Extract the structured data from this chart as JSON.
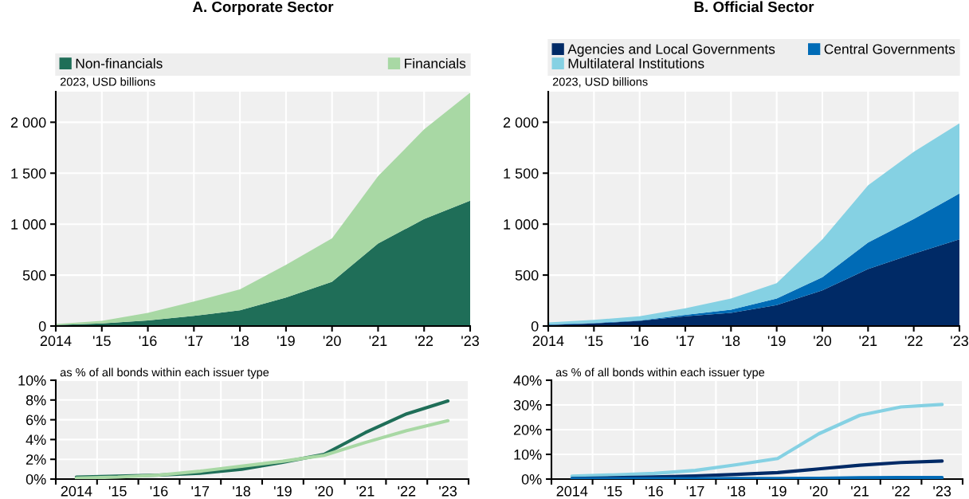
{
  "chart_data": [
    {
      "type": "area",
      "stacked": true,
      "title": "A. Corporate Sector",
      "ylabel": "2023, USD billions",
      "legend": "top",
      "grid": true,
      "x": [
        2014,
        2015,
        2016,
        2017,
        2018,
        2019,
        2020,
        2021,
        2022,
        2023
      ],
      "xlim": [
        2014,
        2023
      ],
      "ylim": [
        0,
        2300
      ],
      "xticks": [
        2014,
        {
          "value": 2015,
          "label": "'15"
        },
        {
          "value": 2016,
          "label": "'16"
        },
        {
          "value": 2017,
          "label": "'17"
        },
        {
          "value": 2018,
          "label": "'18"
        },
        {
          "value": 2019,
          "label": "'19"
        },
        {
          "value": 2020,
          "label": "'20"
        },
        {
          "value": 2021,
          "label": "'21"
        },
        {
          "value": 2022,
          "label": "'22"
        },
        {
          "value": 2023,
          "label": "'23"
        }
      ],
      "yticks": [
        0,
        500,
        {
          "value": 1000,
          "label": "1 000"
        },
        {
          "value": 1500,
          "label": "1 500"
        },
        {
          "value": 2000,
          "label": "2 000"
        }
      ],
      "series": [
        {
          "name": "Non-financials",
          "color": "#1f6e58",
          "values": [
            10,
            25,
            55,
            100,
            155,
            280,
            435,
            810,
            1050,
            1230
          ]
        },
        {
          "name": "Financials",
          "color": "#a8d8a4",
          "values": [
            10,
            25,
            75,
            140,
            205,
            320,
            425,
            660,
            880,
            1060
          ]
        }
      ]
    },
    {
      "type": "area",
      "stacked": true,
      "title": "B. Official Sector",
      "ylabel": "2023, USD billions",
      "legend": "top",
      "grid": true,
      "x": [
        2014,
        2015,
        2016,
        2017,
        2018,
        2019,
        2020,
        2021,
        2022,
        2023
      ],
      "xlim": [
        2014,
        2023
      ],
      "ylim": [
        0,
        2300
      ],
      "xticks": [
        2014,
        {
          "value": 2015,
          "label": "'15"
        },
        {
          "value": 2016,
          "label": "'16"
        },
        {
          "value": 2017,
          "label": "'17"
        },
        {
          "value": 2018,
          "label": "'18"
        },
        {
          "value": 2019,
          "label": "'19"
        },
        {
          "value": 2020,
          "label": "'20"
        },
        {
          "value": 2021,
          "label": "'21"
        },
        {
          "value": 2022,
          "label": "'22"
        },
        {
          "value": 2023,
          "label": "'23"
        }
      ],
      "yticks": [
        0,
        500,
        {
          "value": 1000,
          "label": "1 000"
        },
        {
          "value": 1500,
          "label": "1 500"
        },
        {
          "value": 2000,
          "label": "2 000"
        }
      ],
      "series": [
        {
          "name": "Agencies and Local Governments",
          "color": "#002a66",
          "values": [
            10,
            25,
            50,
            95,
            130,
            205,
            350,
            560,
            710,
            850
          ]
        },
        {
          "name": "Central Governments",
          "color": "#006bb6",
          "values": [
            5,
            5,
            5,
            15,
            30,
            65,
            130,
            260,
            340,
            450
          ]
        },
        {
          "name": "Multilateral Institutions",
          "color": "#85d1e3",
          "values": [
            20,
            30,
            40,
            65,
            110,
            150,
            370,
            560,
            660,
            690
          ]
        }
      ]
    },
    {
      "type": "line",
      "ylabel": "as % of all bonds within each issuer type",
      "grid": true,
      "categories": [
        "2014",
        "'15",
        "'16",
        "'17",
        "'18",
        "'19",
        "'20",
        "'21",
        "'22",
        "'23"
      ],
      "ylim": [
        0,
        10
      ],
      "yticks": [
        {
          "value": 0,
          "label": "0%"
        },
        {
          "value": 2,
          "label": "2%"
        },
        {
          "value": 4,
          "label": "4%"
        },
        {
          "value": 6,
          "label": "6%"
        },
        {
          "value": 8,
          "label": "8%"
        },
        {
          "value": 10,
          "label": "10%"
        }
      ],
      "series": [
        {
          "color": "#1f6e58",
          "values": [
            0.2,
            0.3,
            0.4,
            0.6,
            1.0,
            1.7,
            2.5,
            4.7,
            6.6,
            7.9
          ]
        },
        {
          "color": "#a8d8a4",
          "values": [
            0.1,
            0.2,
            0.4,
            0.8,
            1.3,
            1.8,
            2.4,
            3.7,
            4.9,
            5.9
          ]
        }
      ]
    },
    {
      "type": "line",
      "ylabel": "as % of all bonds within each issuer type",
      "grid": true,
      "categories": [
        "2014",
        "'15",
        "'16",
        "'17",
        "'18",
        "'19",
        "'20",
        "'21",
        "'22",
        "'23"
      ],
      "ylim": [
        0,
        40
      ],
      "yticks": [
        {
          "value": 0,
          "label": "0%"
        },
        {
          "value": 10,
          "label": "10%"
        },
        {
          "value": 20,
          "label": "20%"
        },
        {
          "value": 30,
          "label": "30%"
        },
        {
          "value": 40,
          "label": "40%"
        }
      ],
      "series": [
        {
          "color": "#85d1e3",
          "values": [
            1.2,
            1.7,
            2.3,
            3.5,
            5.8,
            8.3,
            18.3,
            25.8,
            29.2,
            30.2
          ]
        },
        {
          "color": "#002a66",
          "values": [
            0.2,
            0.5,
            0.9,
            1.3,
            1.9,
            2.6,
            4.1,
            5.6,
            6.7,
            7.3
          ]
        },
        {
          "color": "#006bb6",
          "values": [
            0.1,
            0.1,
            0.1,
            0.1,
            0.2,
            0.2,
            0.3,
            0.5,
            0.6,
            0.6
          ]
        }
      ]
    }
  ]
}
